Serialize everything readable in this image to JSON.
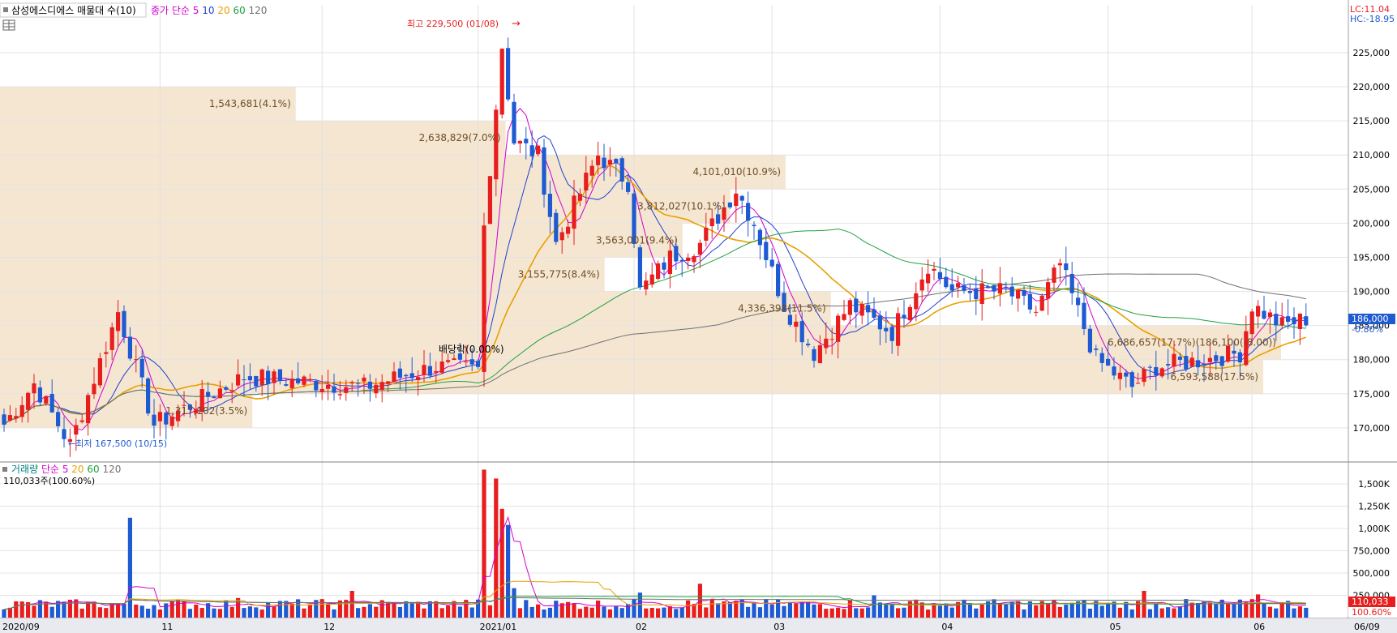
{
  "header": {
    "stock_label": "삼성에스디에스 매물대 수(10)",
    "price_legend": [
      {
        "text": "종가 단순 5",
        "color": "#d000d0"
      },
      {
        "text": "10",
        "color": "#2040d0"
      },
      {
        "text": "20",
        "color": "#e8a000"
      },
      {
        "text": "60",
        "color": "#20a040"
      },
      {
        "text": "120",
        "color": "#707070"
      }
    ],
    "lc_label": "LC:11.04",
    "hc_label": "HC:-18.95"
  },
  "volume_header": {
    "legend": [
      {
        "text": "거래량",
        "color": "#008080"
      },
      {
        "text": "단순 5",
        "color": "#d000d0"
      },
      {
        "text": "20",
        "color": "#e8a000"
      },
      {
        "text": "60",
        "color": "#20a040"
      },
      {
        "text": "120",
        "color": "#707070"
      }
    ],
    "value_text": "110,033주(100.60%)"
  },
  "annotations": {
    "high": "최고 229,500 (01/08)",
    "low": "←최저 167,500 (10/15)",
    "dividend": "배당락(0.00%)"
  },
  "current": {
    "price": "186,000",
    "change": "-0.80%",
    "volume": "110,033",
    "volume_pct": "100.60%"
  },
  "colors": {
    "up": "#e81e1e",
    "down": "#1e5ad2",
    "ma5": "#d000d0",
    "ma10": "#2040d0",
    "ma20": "#e8a000",
    "ma60": "#20a040",
    "ma120": "#707070",
    "profile": "#f5e6d2"
  },
  "chart_data": [
    {
      "type": "candlestick",
      "ylim": [
        165000,
        232000
      ],
      "y_ticks": [
        170000,
        175000,
        180000,
        185000,
        190000,
        195000,
        200000,
        205000,
        210000,
        215000,
        220000,
        225000
      ],
      "y_tick_labels": [
        "170,000",
        "175,000",
        "180,000",
        "185,000",
        "190,000",
        "195,000",
        "200,000",
        "205,000",
        "210,000",
        "215,000",
        "220,000",
        "225,000"
      ],
      "x_labels": [
        {
          "index": 0,
          "label": "2020/09"
        },
        {
          "index": 26,
          "label": "11"
        },
        {
          "index": 53,
          "label": "12"
        },
        {
          "index": 79,
          "label": "2021/01"
        },
        {
          "index": 105,
          "label": "02"
        },
        {
          "index": 128,
          "label": "03"
        },
        {
          "index": 156,
          "label": "04"
        },
        {
          "index": 184,
          "label": "05"
        },
        {
          "index": 208,
          "label": "06"
        },
        {
          "index": 223,
          "label": "06/09"
        }
      ],
      "candles_approx": {
        "count": 218,
        "anchors": [
          [
            0,
            170500
          ],
          [
            5,
            176500
          ],
          [
            11,
            167500
          ],
          [
            19,
            187000
          ],
          [
            25,
            170500
          ],
          [
            40,
            177500
          ],
          [
            60,
            176000
          ],
          [
            72,
            179000
          ],
          [
            79,
            178500
          ],
          [
            80,
            199500
          ],
          [
            83,
            226000
          ],
          [
            85,
            212000
          ],
          [
            89,
            210000
          ],
          [
            92,
            197000
          ],
          [
            99,
            210000
          ],
          [
            104,
            206000
          ],
          [
            106,
            190000
          ],
          [
            111,
            195000
          ],
          [
            116,
            197000
          ],
          [
            122,
            205000
          ],
          [
            125,
            200000
          ],
          [
            130,
            188000
          ],
          [
            135,
            181000
          ],
          [
            141,
            188000
          ],
          [
            148,
            184000
          ],
          [
            154,
            194000
          ],
          [
            158,
            190000
          ],
          [
            167,
            190000
          ],
          [
            172,
            187000
          ],
          [
            176,
            194000
          ],
          [
            182,
            180000
          ],
          [
            188,
            176000
          ],
          [
            192,
            179000
          ],
          [
            200,
            180000
          ],
          [
            206,
            181000
          ],
          [
            208,
            188000
          ],
          [
            213,
            185000
          ],
          [
            217,
            186000
          ]
        ]
      },
      "volume_profile": [
        {
          "low": 170000,
          "high": 175000,
          "volume": 1317102,
          "label": "1,317,102(3.5%)"
        },
        {
          "low": 175000,
          "high": 180000,
          "volume": 6593588,
          "label": "6,593,588(17.5%)"
        },
        {
          "low": 180000,
          "high": 185000,
          "volume": 6686657,
          "label": "6,686,657(17.7%)(186,100(-8.00))"
        },
        {
          "low": 185000,
          "high": 190000,
          "volume": 4336398,
          "label": "4,336,398(11.5%)"
        },
        {
          "low": 190000,
          "high": 195000,
          "volume": 3155775,
          "label": "3,155,775(8.4%)"
        },
        {
          "low": 195000,
          "high": 200000,
          "volume": 3563001,
          "label": "3,563,001(9.4%)"
        },
        {
          "low": 200000,
          "high": 205000,
          "volume": 3812027,
          "label": "3,812,027(10.1%)"
        },
        {
          "low": 205000,
          "high": 210000,
          "volume": 4101010,
          "label": "4,101,010(10.9%)"
        },
        {
          "low": 210000,
          "high": 215000,
          "volume": 2638829,
          "label": "2,638,829(7.0%)"
        },
        {
          "low": 215000,
          "high": 220000,
          "volume": 1543681,
          "label": "1,543,681(4.1%)"
        }
      ]
    },
    {
      "type": "bar",
      "title": "거래량",
      "ylim": [
        0,
        1700000
      ],
      "y_ticks": [
        250000,
        500000,
        750000,
        1000000,
        1250000,
        1500000
      ],
      "y_tick_labels": [
        "250,000",
        "500,000",
        "750,000",
        "1,000K",
        "1,250K",
        "1,500K"
      ],
      "volume_approx": {
        "baseline": 150000,
        "spikes": [
          [
            21,
            1120000
          ],
          [
            39,
            220000
          ],
          [
            58,
            300000
          ],
          [
            80,
            1660000
          ],
          [
            82,
            1560000
          ],
          [
            83,
            1220000
          ],
          [
            84,
            1040000
          ],
          [
            85,
            330000
          ],
          [
            106,
            280000
          ],
          [
            116,
            380000
          ],
          [
            145,
            250000
          ],
          [
            190,
            300000
          ],
          [
            209,
            260000
          ],
          [
            217,
            110033
          ]
        ]
      }
    }
  ]
}
